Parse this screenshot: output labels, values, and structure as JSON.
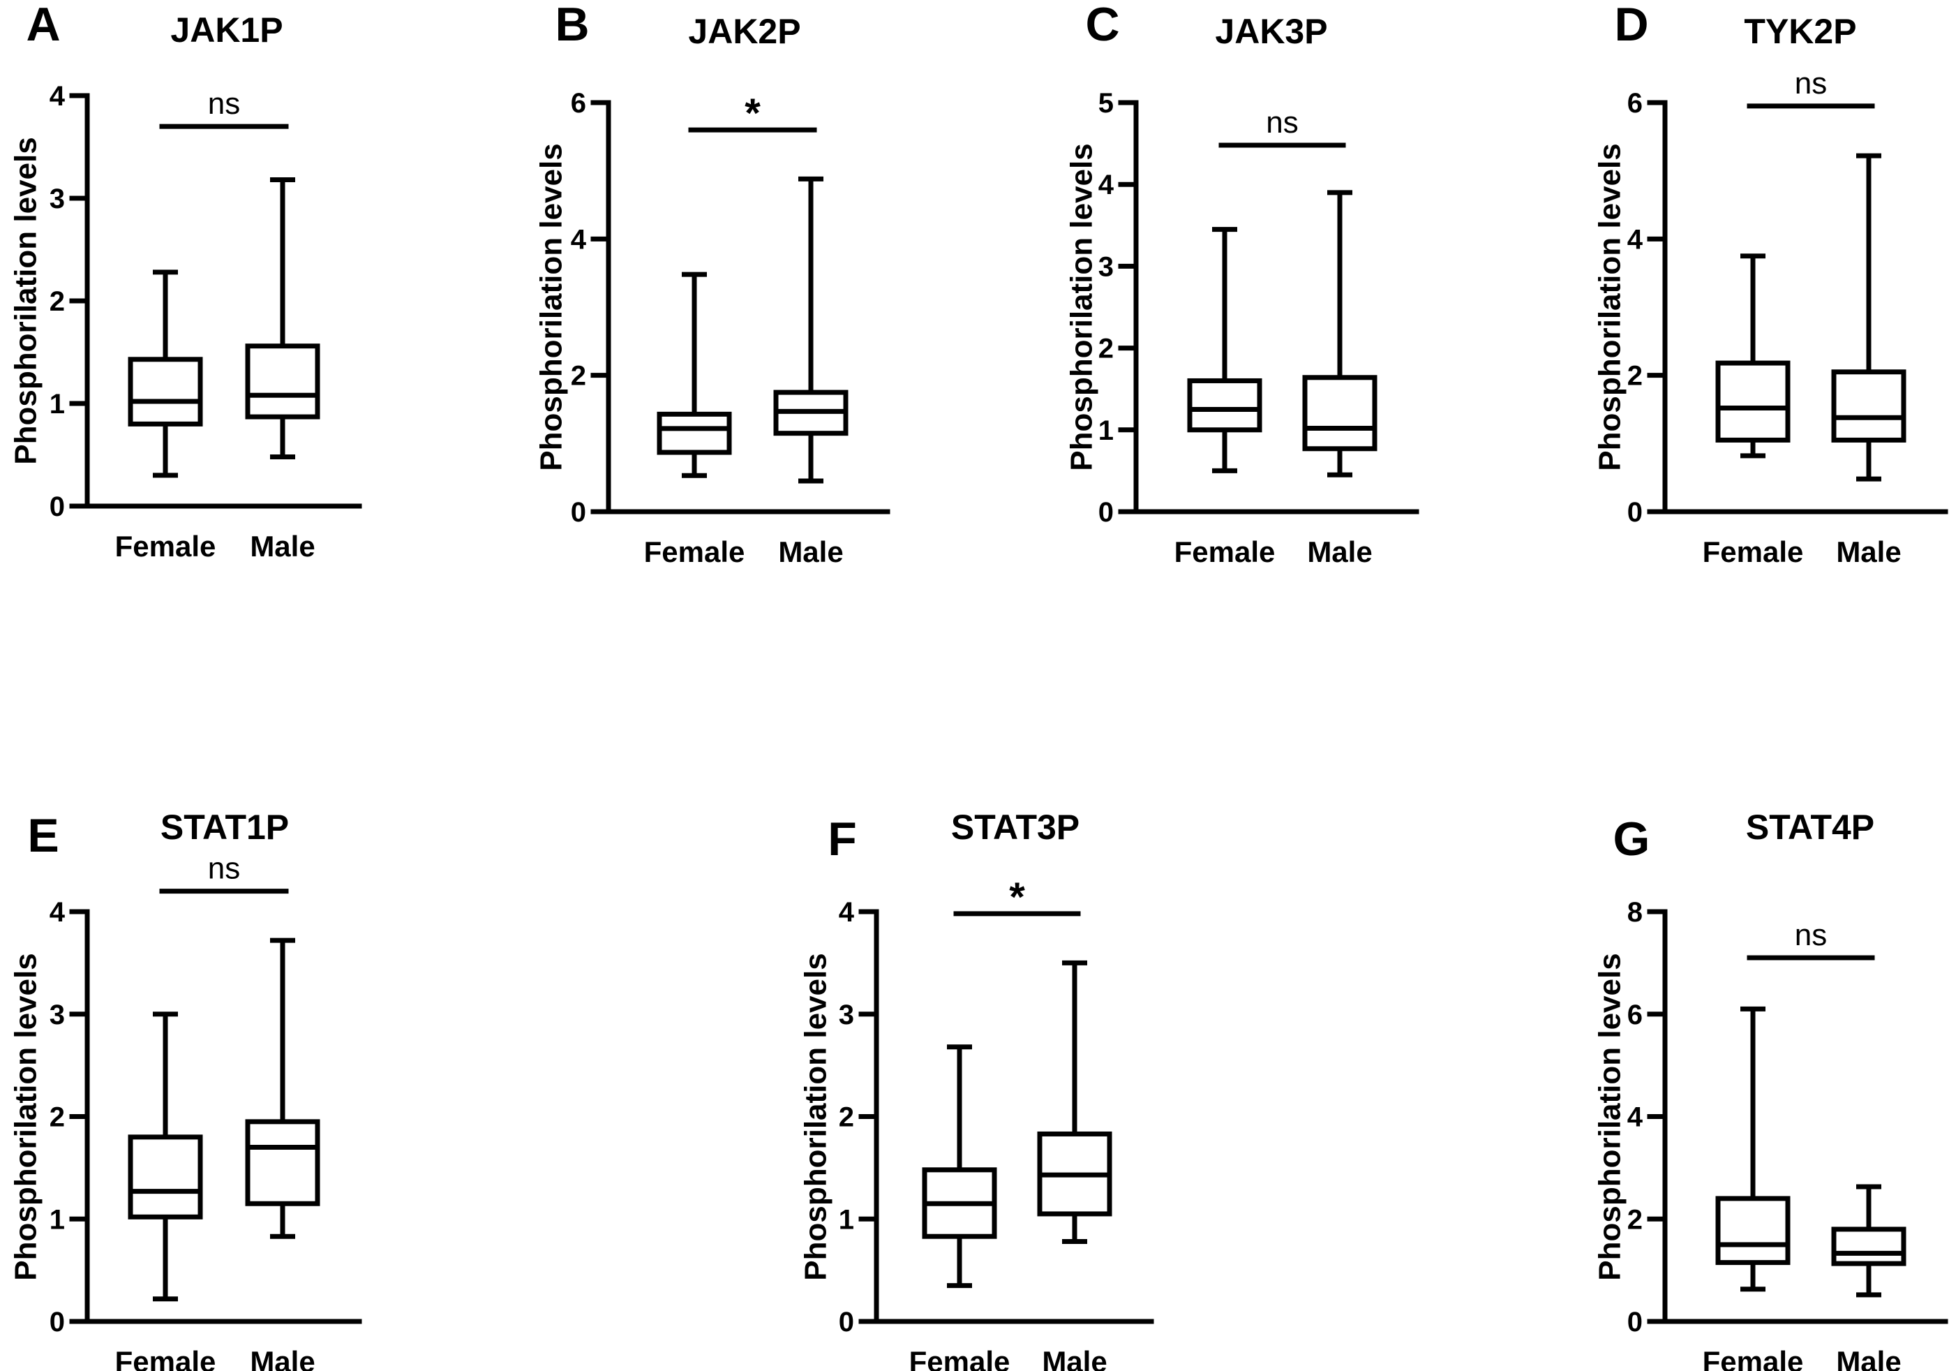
{
  "figure_ylabel": "Phosphorilation levels",
  "chart_data": [
    {
      "type": "boxplot",
      "panel": "A",
      "title": "JAK1P",
      "ylabel": "Phosphorilation levels",
      "ylim": [
        0,
        4
      ],
      "yticks": [
        0,
        1,
        2,
        3,
        4
      ],
      "categories": [
        "Female",
        "Male"
      ],
      "boxes": [
        {
          "name": "Female",
          "min": 0.3,
          "q1": 0.8,
          "median": 1.02,
          "q3": 1.43,
          "max": 2.28
        },
        {
          "name": "Male",
          "min": 0.48,
          "q1": 0.87,
          "median": 1.08,
          "q3": 1.56,
          "max": 3.18
        }
      ],
      "significance": {
        "label": "ns",
        "y": 3.7
      }
    },
    {
      "type": "boxplot",
      "panel": "B",
      "title": "JAK2P",
      "ylabel": "Phosphorilation levels",
      "ylim": [
        0,
        6
      ],
      "yticks": [
        0,
        2,
        4,
        6
      ],
      "categories": [
        "Female",
        "Male"
      ],
      "boxes": [
        {
          "name": "Female",
          "min": 0.53,
          "q1": 0.87,
          "median": 1.22,
          "q3": 1.43,
          "max": 3.48
        },
        {
          "name": "Male",
          "min": 0.45,
          "q1": 1.15,
          "median": 1.47,
          "q3": 1.75,
          "max": 4.88
        }
      ],
      "significance": {
        "label": "*",
        "y": 5.6
      }
    },
    {
      "type": "boxplot",
      "panel": "C",
      "title": "JAK3P",
      "ylabel": "Phosphorilation levels",
      "ylim": [
        0,
        5
      ],
      "yticks": [
        0,
        1,
        2,
        3,
        4,
        5
      ],
      "categories": [
        "Female",
        "Male"
      ],
      "boxes": [
        {
          "name": "Female",
          "min": 0.5,
          "q1": 1.0,
          "median": 1.25,
          "q3": 1.6,
          "max": 3.45
        },
        {
          "name": "Male",
          "min": 0.45,
          "q1": 0.77,
          "median": 1.02,
          "q3": 1.64,
          "max": 3.9
        }
      ],
      "significance": {
        "label": "ns",
        "y": 4.48
      }
    },
    {
      "type": "boxplot",
      "panel": "D",
      "title": "TYK2P",
      "ylabel": "Phosphorilation levels",
      "ylim": [
        0,
        6
      ],
      "yticks": [
        0,
        2,
        4,
        6
      ],
      "categories": [
        "Female",
        "Male"
      ],
      "boxes": [
        {
          "name": "Female",
          "min": 0.82,
          "q1": 1.05,
          "median": 1.52,
          "q3": 2.18,
          "max": 3.75
        },
        {
          "name": "Male",
          "min": 0.48,
          "q1": 1.05,
          "median": 1.38,
          "q3": 2.05,
          "max": 5.22
        }
      ],
      "significance": {
        "label": "ns",
        "y": 5.95
      }
    },
    {
      "type": "boxplot",
      "panel": "E",
      "title": "STAT1P",
      "ylabel": "Phosphorilation levels",
      "ylim": [
        0,
        4
      ],
      "yticks": [
        0,
        1,
        2,
        3,
        4
      ],
      "categories": [
        "Female",
        "Male"
      ],
      "boxes": [
        {
          "name": "Female",
          "min": 0.22,
          "q1": 1.02,
          "median": 1.27,
          "q3": 1.8,
          "max": 3.0
        },
        {
          "name": "Male",
          "min": 0.83,
          "q1": 1.15,
          "median": 1.7,
          "q3": 1.95,
          "max": 3.72
        }
      ],
      "significance": {
        "label": "ns",
        "y": 4.2
      }
    },
    {
      "type": "boxplot",
      "panel": "F",
      "title": "STAT3P",
      "ylabel": "Phosphorilation levels",
      "ylim": [
        0,
        4
      ],
      "yticks": [
        0,
        1,
        2,
        3,
        4
      ],
      "categories": [
        "Female",
        "Male"
      ],
      "boxes": [
        {
          "name": "Female",
          "min": 0.35,
          "q1": 0.83,
          "median": 1.15,
          "q3": 1.48,
          "max": 2.68
        },
        {
          "name": "Male",
          "min": 0.78,
          "q1": 1.05,
          "median": 1.43,
          "q3": 1.83,
          "max": 3.5
        }
      ],
      "significance": {
        "label": "*",
        "y": 3.98
      }
    },
    {
      "type": "boxplot",
      "panel": "G",
      "title": "STAT4P",
      "ylabel": "Phosphorilation levels",
      "ylim": [
        0,
        8
      ],
      "yticks": [
        0,
        2,
        4,
        6,
        8
      ],
      "categories": [
        "Female",
        "Male"
      ],
      "boxes": [
        {
          "name": "Female",
          "min": 0.63,
          "q1": 1.15,
          "median": 1.5,
          "q3": 2.4,
          "max": 6.1
        },
        {
          "name": "Male",
          "min": 0.52,
          "q1": 1.13,
          "median": 1.33,
          "q3": 1.8,
          "max": 2.63
        }
      ],
      "significance": {
        "label": "ns",
        "y": 7.1
      }
    }
  ]
}
